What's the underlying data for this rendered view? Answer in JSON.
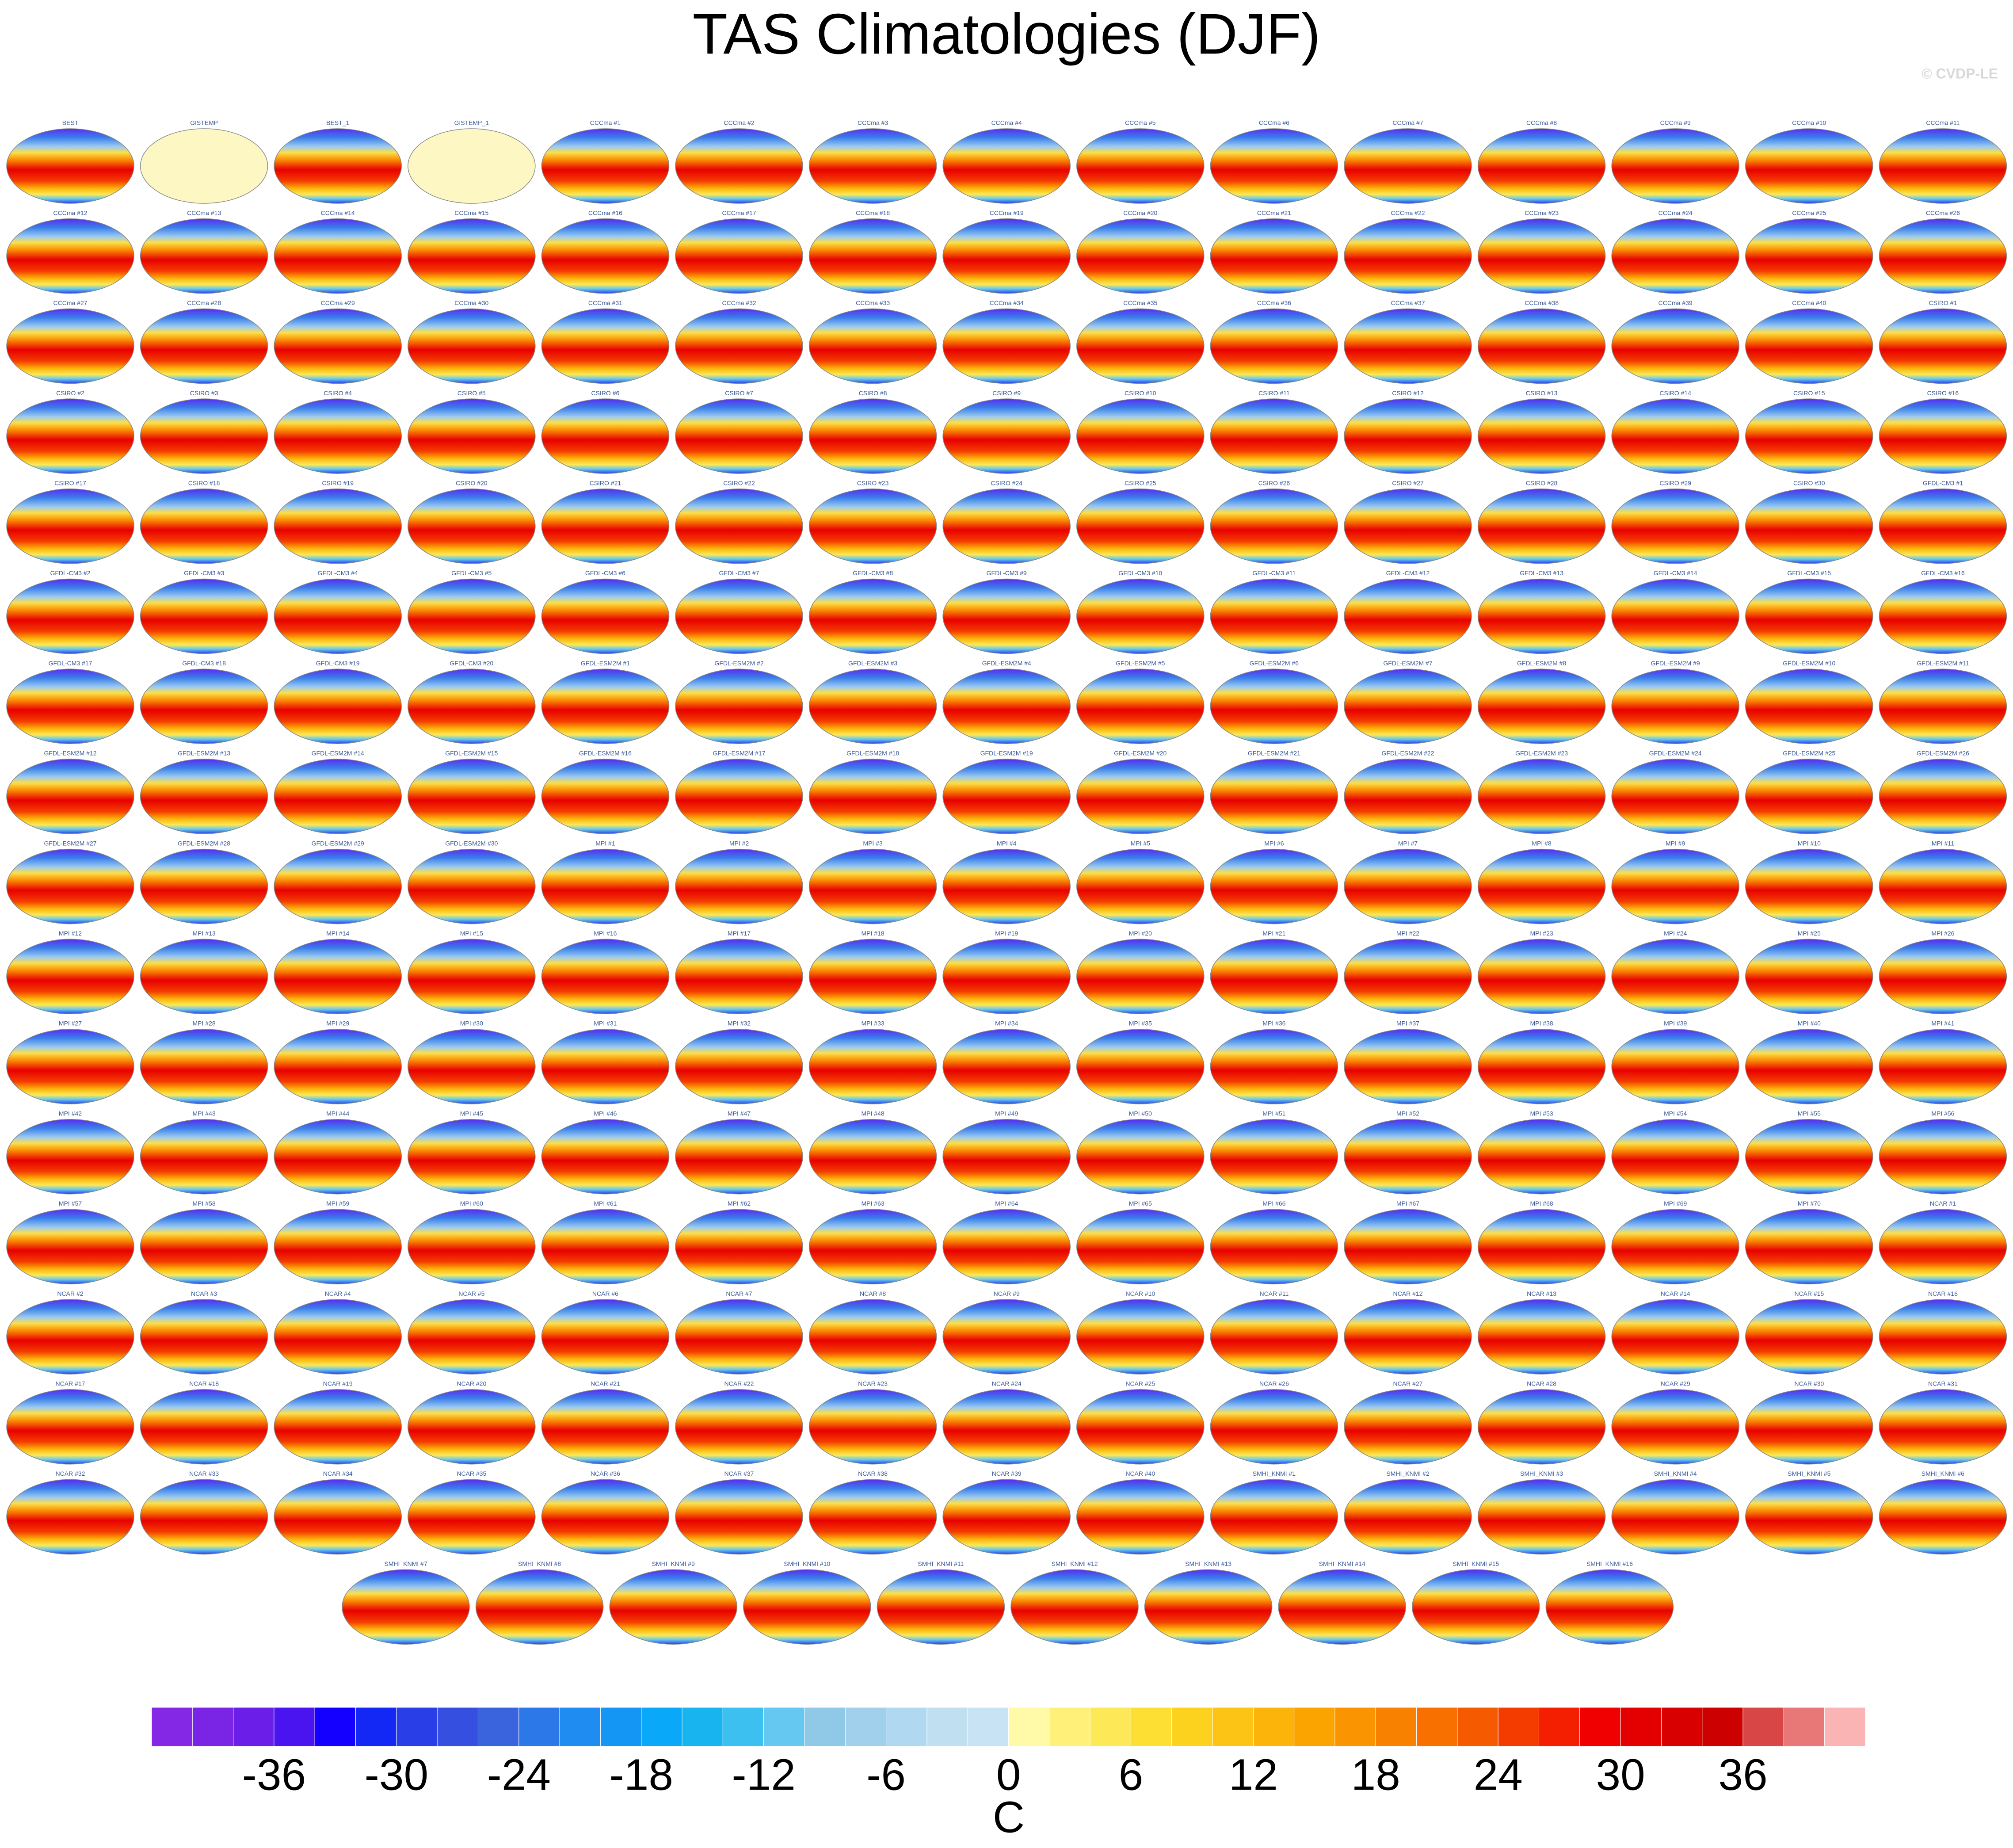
{
  "title": "TAS Climatologies (DJF)",
  "watermark": "© CVDP-LE",
  "missing_data_panels": [
    "GISTEMP",
    "GISTEMP_1"
  ],
  "panels": [
    "BEST",
    "GISTEMP",
    "BEST_1",
    "GISTEMP_1",
    "CCCma #1",
    "CCCma #2",
    "CCCma #3",
    "CCCma #4",
    "CCCma #5",
    "CCCma #6",
    "CCCma #7",
    "CCCma #8",
    "CCCma #9",
    "CCCma #10",
    "CCCma #11",
    "CCCma #12",
    "CCCma #13",
    "CCCma #14",
    "CCCma #15",
    "CCCma #16",
    "CCCma #17",
    "CCCma #18",
    "CCCma #19",
    "CCCma #20",
    "CCCma #21",
    "CCCma #22",
    "CCCma #23",
    "CCCma #24",
    "CCCma #25",
    "CCCma #26",
    "CCCma #27",
    "CCCma #28",
    "CCCma #29",
    "CCCma #30",
    "CCCma #31",
    "CCCma #32",
    "CCCma #33",
    "CCCma #34",
    "CCCma #35",
    "CCCma #36",
    "CCCma #37",
    "CCCma #38",
    "CCCma #39",
    "CCCma #40",
    "CSIRO #1",
    "CSIRO #2",
    "CSIRO #3",
    "CSIRO #4",
    "CSIRO #5",
    "CSIRO #6",
    "CSIRO #7",
    "CSIRO #8",
    "CSIRO #9",
    "CSIRO #10",
    "CSIRO #11",
    "CSIRO #12",
    "CSIRO #13",
    "CSIRO #14",
    "CSIRO #15",
    "CSIRO #16",
    "CSIRO #17",
    "CSIRO #18",
    "CSIRO #19",
    "CSIRO #20",
    "CSIRO #21",
    "CSIRO #22",
    "CSIRO #23",
    "CSIRO #24",
    "CSIRO #25",
    "CSIRO #26",
    "CSIRO #27",
    "CSIRO #28",
    "CSIRO #29",
    "CSIRO #30",
    "GFDL-CM3 #1",
    "GFDL-CM3 #2",
    "GFDL-CM3 #3",
    "GFDL-CM3 #4",
    "GFDL-CM3 #5",
    "GFDL-CM3 #6",
    "GFDL-CM3 #7",
    "GFDL-CM3 #8",
    "GFDL-CM3 #9",
    "GFDL-CM3 #10",
    "GFDL-CM3 #11",
    "GFDL-CM3 #12",
    "GFDL-CM3 #13",
    "GFDL-CM3 #14",
    "GFDL-CM3 #15",
    "GFDL-CM3 #16",
    "GFDL-CM3 #17",
    "GFDL-CM3 #18",
    "GFDL-CM3 #19",
    "GFDL-CM3 #20",
    "GFDL-ESM2M #1",
    "GFDL-ESM2M #2",
    "GFDL-ESM2M #3",
    "GFDL-ESM2M #4",
    "GFDL-ESM2M #5",
    "GFDL-ESM2M #6",
    "GFDL-ESM2M #7",
    "GFDL-ESM2M #8",
    "GFDL-ESM2M #9",
    "GFDL-ESM2M #10",
    "GFDL-ESM2M #11",
    "GFDL-ESM2M #12",
    "GFDL-ESM2M #13",
    "GFDL-ESM2M #14",
    "GFDL-ESM2M #15",
    "GFDL-ESM2M #16",
    "GFDL-ESM2M #17",
    "GFDL-ESM2M #18",
    "GFDL-ESM2M #19",
    "GFDL-ESM2M #20",
    "GFDL-ESM2M #21",
    "GFDL-ESM2M #22",
    "GFDL-ESM2M #23",
    "GFDL-ESM2M #24",
    "GFDL-ESM2M #25",
    "GFDL-ESM2M #26",
    "GFDL-ESM2M #27",
    "GFDL-ESM2M #28",
    "GFDL-ESM2M #29",
    "GFDL-ESM2M #30",
    "MPI #1",
    "MPI #2",
    "MPI #3",
    "MPI #4",
    "MPI #5",
    "MPI #6",
    "MPI #7",
    "MPI #8",
    "MPI #9",
    "MPI #10",
    "MPI #11",
    "MPI #12",
    "MPI #13",
    "MPI #14",
    "MPI #15",
    "MPI #16",
    "MPI #17",
    "MPI #18",
    "MPI #19",
    "MPI #20",
    "MPI #21",
    "MPI #22",
    "MPI #23",
    "MPI #24",
    "MPI #25",
    "MPI #26",
    "MPI #27",
    "MPI #28",
    "MPI #29",
    "MPI #30",
    "MPI #31",
    "MPI #32",
    "MPI #33",
    "MPI #34",
    "MPI #35",
    "MPI #36",
    "MPI #37",
    "MPI #38",
    "MPI #39",
    "MPI #40",
    "MPI #41",
    "MPI #42",
    "MPI #43",
    "MPI #44",
    "MPI #45",
    "MPI #46",
    "MPI #47",
    "MPI #48",
    "MPI #49",
    "MPI #50",
    "MPI #51",
    "MPI #52",
    "MPI #53",
    "MPI #54",
    "MPI #55",
    "MPI #56",
    "MPI #57",
    "MPI #58",
    "MPI #59",
    "MPI #60",
    "MPI #61",
    "MPI #62",
    "MPI #63",
    "MPI #64",
    "MPI #65",
    "MPI #66",
    "MPI #67",
    "MPI #68",
    "MPI #69",
    "MPI #70",
    "NCAR #1",
    "NCAR #2",
    "NCAR #3",
    "NCAR #4",
    "NCAR #5",
    "NCAR #6",
    "NCAR #7",
    "NCAR #8",
    "NCAR #9",
    "NCAR #10",
    "NCAR #11",
    "NCAR #12",
    "NCAR #13",
    "NCAR #14",
    "NCAR #15",
    "NCAR #16",
    "NCAR #17",
    "NCAR #18",
    "NCAR #19",
    "NCAR #20",
    "NCAR #21",
    "NCAR #22",
    "NCAR #23",
    "NCAR #24",
    "NCAR #25",
    "NCAR #26",
    "NCAR #27",
    "NCAR #28",
    "NCAR #29",
    "NCAR #30",
    "NCAR #31",
    "NCAR #32",
    "NCAR #33",
    "NCAR #34",
    "NCAR #35",
    "NCAR #36",
    "NCAR #37",
    "NCAR #38",
    "NCAR #39",
    "NCAR #40",
    "SMHI_KNMI #1",
    "SMHI_KNMI #2",
    "SMHI_KNMI #3",
    "SMHI_KNMI #4",
    "SMHI_KNMI #5",
    "SMHI_KNMI #6",
    "SMHI_KNMI #7",
    "SMHI_KNMI #8",
    "SMHI_KNMI #9",
    "SMHI_KNMI #10",
    "SMHI_KNMI #11",
    "SMHI_KNMI #12",
    "SMHI_KNMI #13",
    "SMHI_KNMI #14",
    "SMHI_KNMI #15",
    "SMHI_KNMI #16"
  ],
  "colorbar": {
    "label": "C",
    "lim": [
      -42,
      42
    ],
    "ticks": [
      -36,
      -30,
      -24,
      -18,
      -12,
      -6,
      0,
      6,
      12,
      18,
      24,
      30,
      36
    ],
    "colors": [
      "#8528e6",
      "#7a24e6",
      "#6a1ee8",
      "#4a14f0",
      "#1400ff",
      "#1428f5",
      "#2a3ee8",
      "#3550e0",
      "#3a64de",
      "#2d78e8",
      "#1e8cf0",
      "#1496f5",
      "#0aa8f8",
      "#18b4f0",
      "#3cc0f0",
      "#64c8f0",
      "#90c8e8",
      "#a0d0ec",
      "#b0d8f0",
      "#c0e0f2",
      "#c8e4f4",
      "#fffaa8",
      "#fff07a",
      "#fde858",
      "#fcdf32",
      "#fcd21e",
      "#fcc414",
      "#fcb40a",
      "#fba400",
      "#fa9400",
      "#f88200",
      "#f77000",
      "#f55a00",
      "#f43c00",
      "#f41e00",
      "#f00000",
      "#e40000",
      "#d80000",
      "#cc0000",
      "#d84646",
      "#e87878",
      "#fab4b4"
    ]
  }
}
